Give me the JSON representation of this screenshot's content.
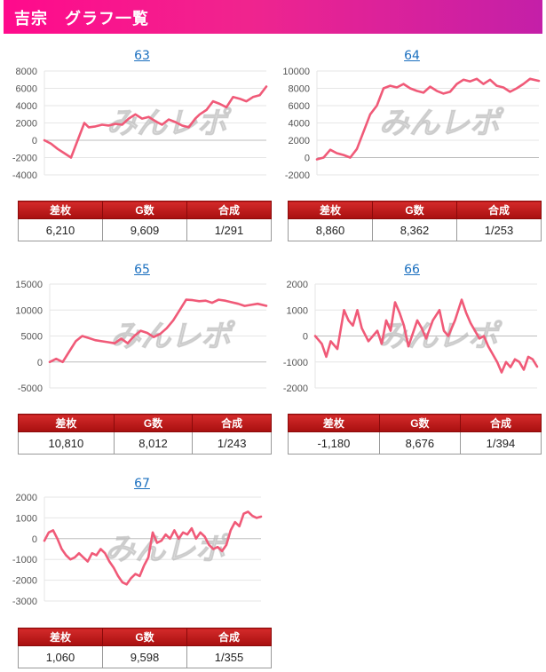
{
  "header": {
    "title": "吉宗　グラフ一覧"
  },
  "table_headers": [
    "差枚",
    "G数",
    "合成"
  ],
  "chart_data": [
    {
      "type": "line",
      "machine": "63",
      "ylim": [
        -4000,
        8000
      ],
      "yticks": [
        8000,
        6000,
        4000,
        2000,
        0,
        -2000,
        -4000
      ],
      "x": [
        0,
        0.03,
        0.06,
        0.09,
        0.12,
        0.15,
        0.18,
        0.2,
        0.23,
        0.26,
        0.29,
        0.32,
        0.35,
        0.38,
        0.41,
        0.44,
        0.47,
        0.5,
        0.53,
        0.56,
        0.59,
        0.62,
        0.65,
        0.68,
        0.7,
        0.73,
        0.76,
        0.79,
        0.82,
        0.85,
        0.88,
        0.91,
        0.94,
        0.97,
        1.0
      ],
      "values": [
        0,
        -400,
        -1000,
        -1500,
        -2000,
        0,
        2000,
        1500,
        1600,
        1800,
        1700,
        1900,
        1800,
        2500,
        3000,
        2500,
        2700,
        2200,
        1800,
        2400,
        2100,
        1700,
        1500,
        2500,
        3000,
        3500,
        4500,
        4200,
        3800,
        5000,
        4800,
        4500,
        5000,
        5200,
        6210
      ],
      "stats": {
        "diff": "6,210",
        "games": "9,609",
        "rate": "1/291"
      }
    },
    {
      "type": "line",
      "machine": "64",
      "ylim": [
        -2000,
        10000
      ],
      "yticks": [
        10000,
        8000,
        6000,
        4000,
        2000,
        0,
        -2000
      ],
      "x": [
        0,
        0.03,
        0.06,
        0.09,
        0.12,
        0.15,
        0.18,
        0.21,
        0.24,
        0.27,
        0.3,
        0.33,
        0.36,
        0.39,
        0.42,
        0.45,
        0.48,
        0.51,
        0.54,
        0.57,
        0.6,
        0.63,
        0.66,
        0.69,
        0.72,
        0.75,
        0.78,
        0.81,
        0.84,
        0.87,
        0.9,
        0.93,
        0.96,
        1.0
      ],
      "values": [
        -200,
        0,
        900,
        500,
        300,
        0,
        1000,
        3000,
        5000,
        6000,
        8000,
        8300,
        8100,
        8500,
        8000,
        7700,
        7500,
        8200,
        7700,
        7400,
        7600,
        8500,
        9000,
        8800,
        9100,
        8500,
        9000,
        8300,
        8100,
        7600,
        8000,
        8500,
        9100,
        8860
      ],
      "stats": {
        "diff": "8,860",
        "games": "8,362",
        "rate": "1/253"
      }
    },
    {
      "type": "line",
      "machine": "65",
      "ylim": [
        -5000,
        15000
      ],
      "yticks": [
        15000,
        10000,
        5000,
        0,
        -5000
      ],
      "x": [
        0,
        0.03,
        0.06,
        0.09,
        0.12,
        0.15,
        0.18,
        0.21,
        0.24,
        0.27,
        0.3,
        0.33,
        0.36,
        0.39,
        0.42,
        0.45,
        0.48,
        0.51,
        0.54,
        0.57,
        0.6,
        0.63,
        0.66,
        0.69,
        0.72,
        0.75,
        0.78,
        0.81,
        0.84,
        0.87,
        0.9,
        0.93,
        0.96,
        1.0
      ],
      "values": [
        0,
        600,
        0,
        2000,
        4000,
        5000,
        4600,
        4200,
        4000,
        3800,
        3600,
        4500,
        3600,
        5000,
        6000,
        5600,
        4800,
        5400,
        6500,
        8000,
        10000,
        12000,
        11900,
        11700,
        11800,
        11400,
        12000,
        11800,
        11500,
        11200,
        10800,
        11000,
        11200,
        10810
      ],
      "stats": {
        "diff": "10,810",
        "games": "8,012",
        "rate": "1/243"
      }
    },
    {
      "type": "line",
      "machine": "66",
      "ylim": [
        -2000,
        2000
      ],
      "yticks": [
        2000,
        1000,
        0,
        -1000,
        -2000
      ],
      "x": [
        0,
        0.03,
        0.05,
        0.07,
        0.1,
        0.13,
        0.15,
        0.17,
        0.19,
        0.21,
        0.24,
        0.26,
        0.28,
        0.3,
        0.32,
        0.34,
        0.36,
        0.38,
        0.4,
        0.42,
        0.44,
        0.46,
        0.48,
        0.5,
        0.53,
        0.56,
        0.58,
        0.6,
        0.63,
        0.66,
        0.68,
        0.7,
        0.72,
        0.74,
        0.76,
        0.78,
        0.8,
        0.82,
        0.84,
        0.86,
        0.88,
        0.9,
        0.92,
        0.94,
        0.96,
        0.98,
        1.0
      ],
      "values": [
        0,
        -300,
        -800,
        -200,
        -500,
        1000,
        600,
        400,
        1000,
        300,
        -200,
        0,
        200,
        -300,
        600,
        200,
        1300,
        900,
        400,
        -400,
        100,
        600,
        300,
        -100,
        600,
        1000,
        200,
        0,
        600,
        1400,
        900,
        500,
        200,
        -100,
        0,
        -400,
        -700,
        -1000,
        -1400,
        -1000,
        -1200,
        -900,
        -1000,
        -1300,
        -800,
        -900,
        -1180
      ],
      "stats": {
        "diff": "-1,180",
        "games": "8,676",
        "rate": "1/394"
      }
    },
    {
      "type": "line",
      "machine": "67",
      "ylim": [
        -3000,
        2000
      ],
      "yticks": [
        2000,
        1000,
        0,
        -1000,
        -2000,
        -3000
      ],
      "x": [
        0,
        0.02,
        0.04,
        0.06,
        0.08,
        0.1,
        0.12,
        0.14,
        0.16,
        0.18,
        0.2,
        0.22,
        0.24,
        0.26,
        0.28,
        0.3,
        0.32,
        0.34,
        0.36,
        0.38,
        0.4,
        0.42,
        0.44,
        0.46,
        0.48,
        0.5,
        0.52,
        0.54,
        0.56,
        0.58,
        0.6,
        0.62,
        0.64,
        0.66,
        0.68,
        0.7,
        0.72,
        0.74,
        0.76,
        0.78,
        0.8,
        0.82,
        0.84,
        0.86,
        0.88,
        0.9,
        0.92,
        0.94,
        0.96,
        0.98,
        1.0
      ],
      "values": [
        -100,
        300,
        400,
        0,
        -500,
        -800,
        -1000,
        -900,
        -700,
        -900,
        -1100,
        -700,
        -800,
        -500,
        -700,
        -1100,
        -1400,
        -1800,
        -2100,
        -2200,
        -1900,
        -1700,
        -1800,
        -1300,
        -900,
        300,
        -200,
        -100,
        200,
        0,
        400,
        0,
        300,
        200,
        500,
        0,
        300,
        100,
        -300,
        -500,
        -400,
        -600,
        -300,
        400,
        800,
        600,
        1200,
        1300,
        1100,
        1000,
        1060
      ],
      "stats": {
        "diff": "1,060",
        "games": "9,598",
        "rate": "1/355"
      }
    }
  ]
}
